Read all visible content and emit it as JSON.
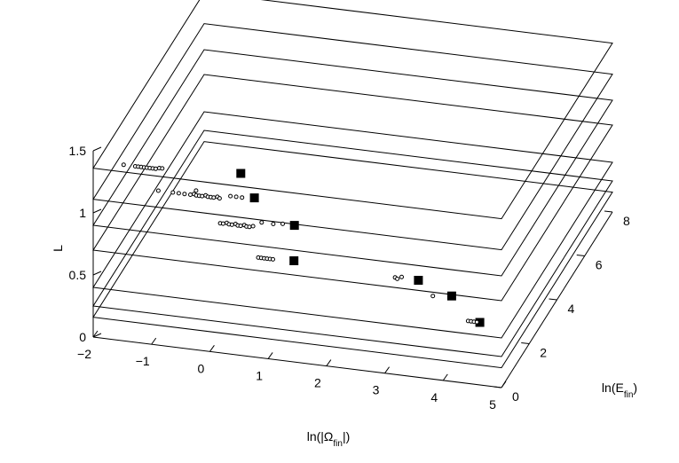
{
  "chart_data": {
    "type": "scatter3d",
    "axes": {
      "x": {
        "label_main": "ln(|Ω",
        "label_sub": "fin",
        "label_end": "|)",
        "ticks": [
          "−2",
          "−1",
          "0",
          "1",
          "2",
          "3",
          "4",
          "5"
        ],
        "tick_values": [
          -2,
          -1,
          0,
          1,
          2,
          3,
          4,
          5
        ],
        "range": [
          -2,
          5
        ]
      },
      "y": {
        "label_main": "ln(E",
        "label_sub": "fin",
        "label_end": ")",
        "ticks": [
          "0",
          "2",
          "4",
          "6",
          "8"
        ],
        "tick_values": [
          0,
          2,
          4,
          6,
          8
        ],
        "range": [
          0,
          8
        ]
      },
      "z": {
        "label": "L",
        "ticks": [
          "0",
          "0.5",
          "1",
          "1.5"
        ],
        "tick_values": [
          0,
          0.5,
          1,
          1.5
        ],
        "range": [
          0,
          1.5
        ]
      }
    },
    "grid": false,
    "planes": [
      {
        "L": 1.36
      },
      {
        "L": 1.11
      },
      {
        "L": 0.9
      },
      {
        "L": 0.7
      },
      {
        "L": 0.4
      },
      {
        "L": 0.25
      },
      {
        "L": 0.16
      }
    ],
    "series": [
      {
        "marker": "square",
        "points": [
          {
            "x": 0.4,
            "y": 0.55,
            "z": 1.36
          },
          {
            "x": 0.55,
            "y": 0.9,
            "z": 1.11
          },
          {
            "x": 1.2,
            "y": 1.05,
            "z": 0.9
          },
          {
            "x": 1.3,
            "y": 0.6,
            "z": 0.7
          },
          {
            "x": 3.1,
            "y": 2.0,
            "z": 0.4
          },
          {
            "x": 3.6,
            "y": 2.3,
            "z": 0.25
          },
          {
            "x": 4.2,
            "y": 1.8,
            "z": 0.16
          }
        ]
      },
      {
        "marker": "circle",
        "points": [
          {
            "x": -1.55,
            "y": 0.3,
            "z": 1.36
          },
          {
            "x": -1.35,
            "y": 0.3,
            "z": 1.36
          },
          {
            "x": -1.3,
            "y": 0.3,
            "z": 1.36
          },
          {
            "x": -1.25,
            "y": 0.3,
            "z": 1.36
          },
          {
            "x": -1.2,
            "y": 0.3,
            "z": 1.36
          },
          {
            "x": -1.15,
            "y": 0.3,
            "z": 1.36
          },
          {
            "x": -1.1,
            "y": 0.3,
            "z": 1.36
          },
          {
            "x": -1.05,
            "y": 0.3,
            "z": 1.36
          },
          {
            "x": -1.0,
            "y": 0.3,
            "z": 1.36
          },
          {
            "x": -0.95,
            "y": 0.35,
            "z": 1.36
          },
          {
            "x": -0.9,
            "y": 0.35,
            "z": 1.36
          },
          {
            "x": -1.05,
            "y": 0.7,
            "z": 1.11
          },
          {
            "x": -0.8,
            "y": 0.7,
            "z": 1.11
          },
          {
            "x": -0.7,
            "y": 0.7,
            "z": 1.11
          },
          {
            "x": -0.6,
            "y": 0.7,
            "z": 1.11
          },
          {
            "x": -0.5,
            "y": 0.7,
            "z": 1.11
          },
          {
            "x": -0.45,
            "y": 0.75,
            "z": 1.11
          },
          {
            "x": -0.4,
            "y": 0.7,
            "z": 1.11
          },
          {
            "x": -0.35,
            "y": 0.7,
            "z": 1.11
          },
          {
            "x": -0.3,
            "y": 0.7,
            "z": 1.11
          },
          {
            "x": -0.25,
            "y": 0.75,
            "z": 1.11
          },
          {
            "x": -0.2,
            "y": 0.7,
            "z": 1.11
          },
          {
            "x": -0.15,
            "y": 0.7,
            "z": 1.11
          },
          {
            "x": -0.1,
            "y": 0.7,
            "z": 1.11
          },
          {
            "x": -0.05,
            "y": 0.75,
            "z": 1.11
          },
          {
            "x": 0.0,
            "y": 0.7,
            "z": 1.11
          },
          {
            "x": -0.45,
            "y": 0.9,
            "z": 1.11
          },
          {
            "x": 0.15,
            "y": 0.85,
            "z": 1.11
          },
          {
            "x": 0.25,
            "y": 0.85,
            "z": 1.11
          },
          {
            "x": 0.35,
            "y": 0.85,
            "z": 1.11
          },
          {
            "x": 0.0,
            "y": 0.75,
            "z": 0.9
          },
          {
            "x": 0.05,
            "y": 0.75,
            "z": 0.9
          },
          {
            "x": 0.1,
            "y": 0.8,
            "z": 0.9
          },
          {
            "x": 0.15,
            "y": 0.75,
            "z": 0.9
          },
          {
            "x": 0.2,
            "y": 0.75,
            "z": 0.9
          },
          {
            "x": 0.25,
            "y": 0.8,
            "z": 0.9
          },
          {
            "x": 0.3,
            "y": 0.75,
            "z": 0.9
          },
          {
            "x": 0.35,
            "y": 0.75,
            "z": 0.9
          },
          {
            "x": 0.4,
            "y": 0.8,
            "z": 0.9
          },
          {
            "x": 0.45,
            "y": 0.75,
            "z": 0.9
          },
          {
            "x": 0.5,
            "y": 0.75,
            "z": 0.9
          },
          {
            "x": 0.55,
            "y": 0.8,
            "z": 0.9
          },
          {
            "x": 0.65,
            "y": 1.0,
            "z": 0.9
          },
          {
            "x": 0.85,
            "y": 1.0,
            "z": 0.9
          },
          {
            "x": 1.0,
            "y": 1.05,
            "z": 0.9
          },
          {
            "x": 0.7,
            "y": 0.55,
            "z": 0.7
          },
          {
            "x": 0.75,
            "y": 0.55,
            "z": 0.7
          },
          {
            "x": 0.8,
            "y": 0.55,
            "z": 0.7
          },
          {
            "x": 0.85,
            "y": 0.55,
            "z": 0.7
          },
          {
            "x": 0.9,
            "y": 0.55,
            "z": 0.7
          },
          {
            "x": 0.95,
            "y": 0.55,
            "z": 0.7
          },
          {
            "x": 2.7,
            "y": 2.0,
            "z": 0.4
          },
          {
            "x": 2.75,
            "y": 1.95,
            "z": 0.4
          },
          {
            "x": 2.8,
            "y": 2.05,
            "z": 0.4
          },
          {
            "x": 3.3,
            "y": 2.2,
            "z": 0.25
          },
          {
            "x": 4.0,
            "y": 1.8,
            "z": 0.16
          },
          {
            "x": 4.05,
            "y": 1.8,
            "z": 0.16
          },
          {
            "x": 4.1,
            "y": 1.8,
            "z": 0.16
          },
          {
            "x": 4.15,
            "y": 1.8,
            "z": 0.16
          }
        ]
      }
    ]
  }
}
